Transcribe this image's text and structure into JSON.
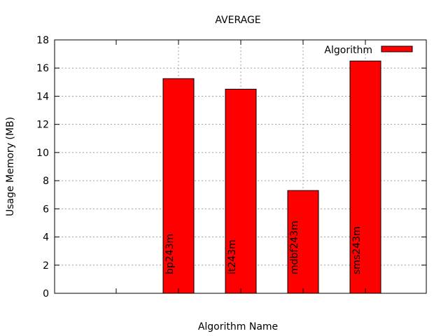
{
  "chart_data": {
    "type": "bar",
    "title": "AVERAGE",
    "xlabel": "Algorithm Name",
    "ylabel": "Usage Memory (MB)",
    "ylim": [
      0,
      18
    ],
    "yticks": [
      0,
      2,
      4,
      6,
      8,
      10,
      12,
      14,
      16,
      18
    ],
    "grid": true,
    "legend": {
      "position": "top-right",
      "entries": [
        "Algorithm"
      ]
    },
    "categories": [
      "",
      "bp243m",
      "it243m",
      "mdbf243m",
      "sms243m"
    ],
    "series": [
      {
        "name": "Algorithm",
        "values": [
          null,
          15.25,
          14.5,
          7.3,
          16.5
        ],
        "color": "#ff0000"
      }
    ]
  }
}
